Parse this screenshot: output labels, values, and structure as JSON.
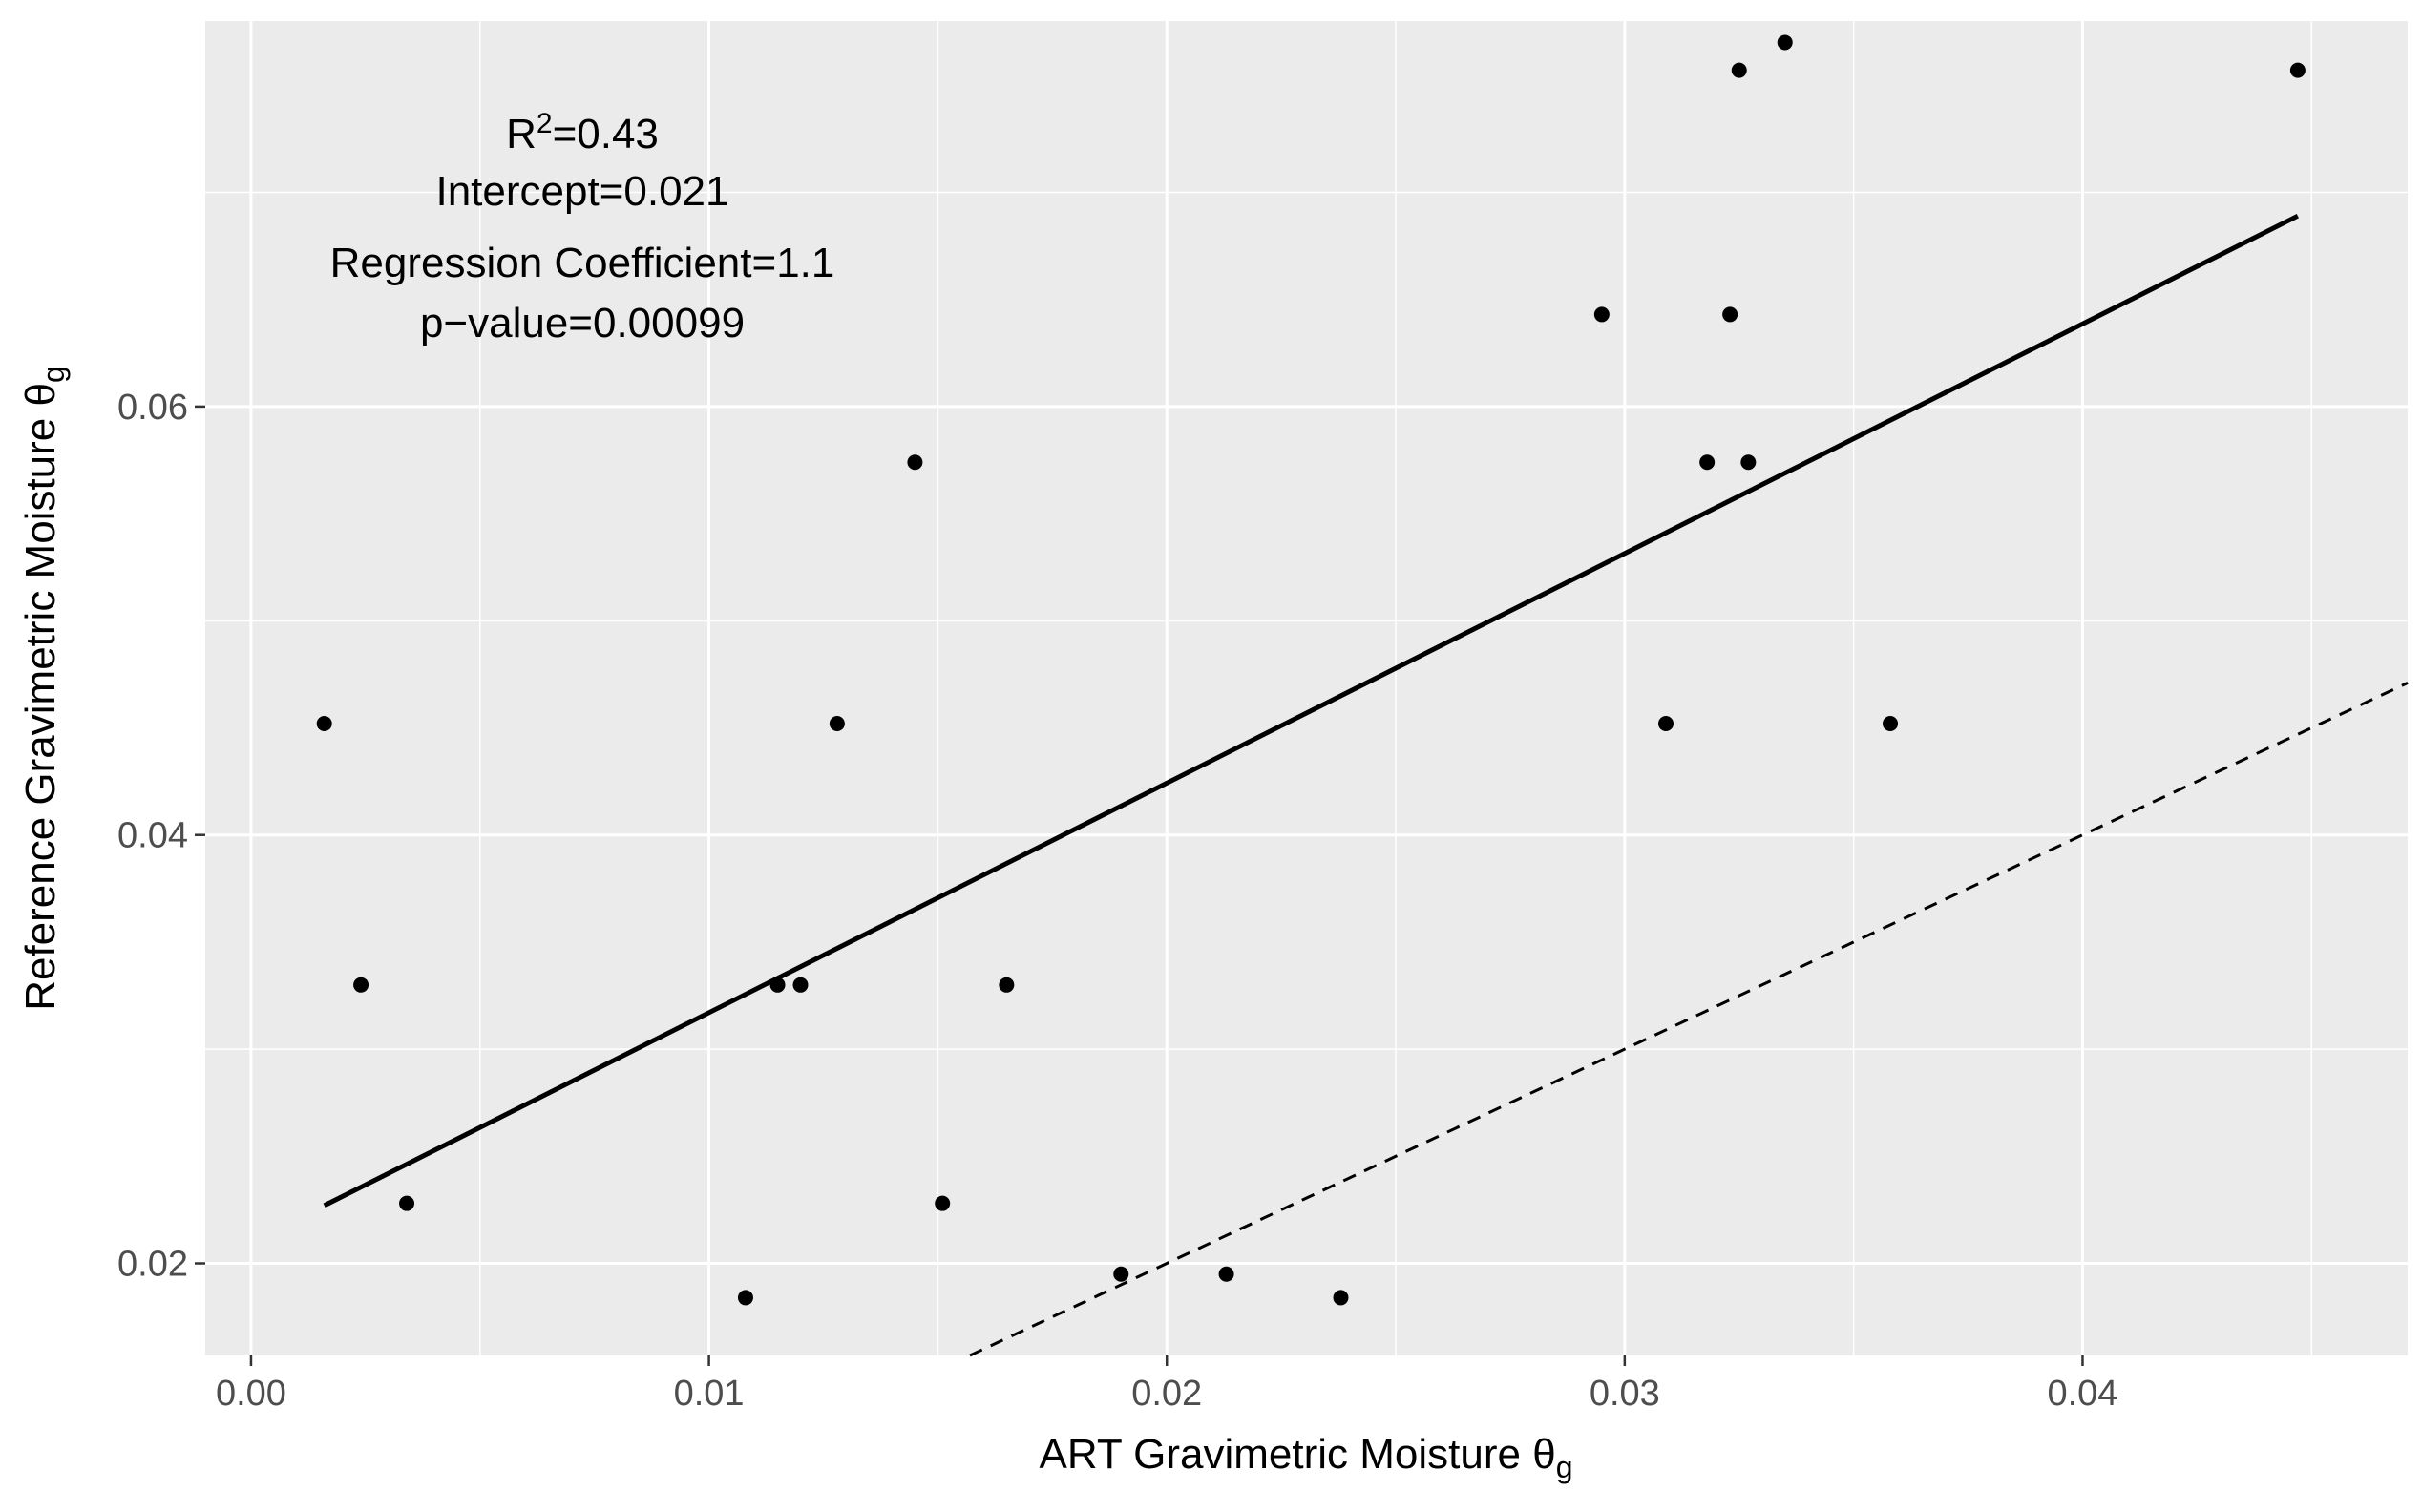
{
  "chart_data": {
    "type": "scatter",
    "xlabel": "ART Gravimetric Moisture",
    "xlabel_symbol": "θ",
    "xlabel_subscript": "g",
    "ylabel": "Reference Gravimetric Moisture",
    "ylabel_symbol": "θ",
    "ylabel_subscript": "g",
    "xlim": [
      -0.001,
      0.0471
    ],
    "ylim": [
      0.0157,
      0.078
    ],
    "x_ticks": [
      0.0,
      0.01,
      0.02,
      0.03,
      0.04
    ],
    "x_tick_labels": [
      "0.00",
      "0.01",
      "0.02",
      "0.03",
      "0.04"
    ],
    "y_ticks": [
      0.02,
      0.04,
      0.06
    ],
    "y_tick_labels": [
      "0.02",
      "0.04",
      "0.06"
    ],
    "x_minor_ticks": [
      0.005,
      0.015,
      0.025,
      0.035,
      0.045
    ],
    "y_minor_ticks": [
      0.03,
      0.05,
      0.07
    ],
    "grid": true,
    "points": [
      {
        "x": 0.0016,
        "y": 0.0452
      },
      {
        "x": 0.0024,
        "y": 0.033
      },
      {
        "x": 0.0034,
        "y": 0.0228
      },
      {
        "x": 0.0108,
        "y": 0.0184
      },
      {
        "x": 0.0115,
        "y": 0.033
      },
      {
        "x": 0.012,
        "y": 0.033
      },
      {
        "x": 0.0128,
        "y": 0.0452
      },
      {
        "x": 0.0145,
        "y": 0.0574
      },
      {
        "x": 0.0151,
        "y": 0.0228
      },
      {
        "x": 0.0165,
        "y": 0.033
      },
      {
        "x": 0.019,
        "y": 0.0195
      },
      {
        "x": 0.0213,
        "y": 0.0195
      },
      {
        "x": 0.0238,
        "y": 0.0184
      },
      {
        "x": 0.0295,
        "y": 0.0643
      },
      {
        "x": 0.0309,
        "y": 0.0452
      },
      {
        "x": 0.0318,
        "y": 0.0574
      },
      {
        "x": 0.0323,
        "y": 0.0643
      },
      {
        "x": 0.0325,
        "y": 0.0757
      },
      {
        "x": 0.0327,
        "y": 0.0574
      },
      {
        "x": 0.0335,
        "y": 0.077
      },
      {
        "x": 0.0358,
        "y": 0.0452
      },
      {
        "x": 0.0447,
        "y": 0.0757
      }
    ],
    "regression_line": {
      "x": [
        0.0016,
        0.0447
      ],
      "y": [
        0.0227,
        0.0689
      ]
    },
    "identity_line": {
      "x": [
        0.0157,
        0.0471
      ],
      "y": [
        0.0157,
        0.0471
      ]
    },
    "annotation": {
      "r2_prefix": "R",
      "r2_superscript": "2",
      "r2_value": "=0.43",
      "intercept": "Intercept=0.021",
      "coefficient": "Regression Coefficient=1.1",
      "pvalue": "p−value=0.00099"
    },
    "colors": {
      "panel": "#EBEBEB",
      "grid": "#FFFFFF",
      "points": "#000000",
      "lines": "#000000",
      "tick_text": "#4D4D4D"
    }
  }
}
